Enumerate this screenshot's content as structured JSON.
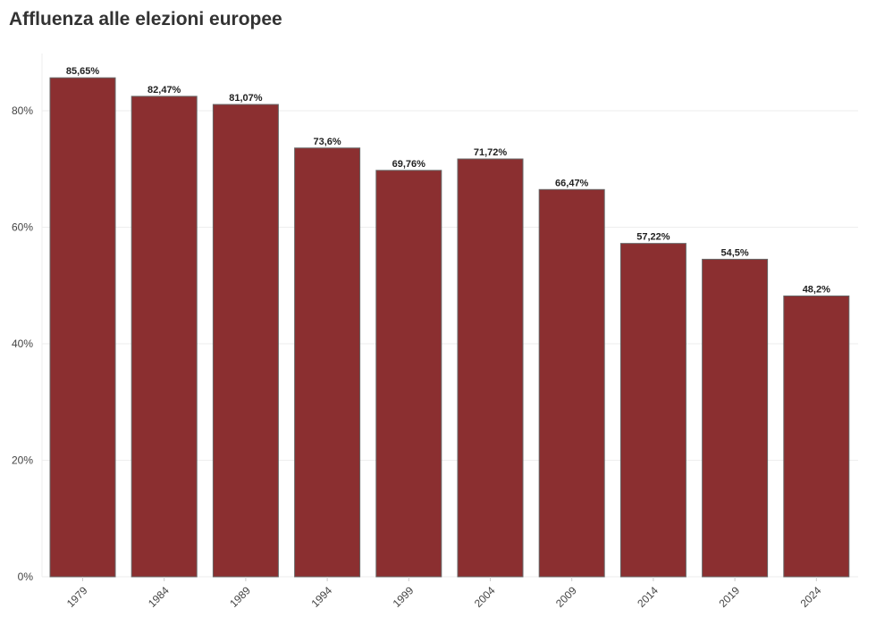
{
  "chart_data": {
    "type": "bar",
    "title": "Affluenza alle elezioni europee",
    "xlabel": "",
    "ylabel": "",
    "categories": [
      "1979",
      "1984",
      "1989",
      "1994",
      "1999",
      "2004",
      "2009",
      "2014",
      "2019",
      "2024"
    ],
    "values": [
      85.65,
      82.47,
      81.07,
      73.6,
      69.76,
      71.72,
      66.47,
      57.22,
      54.5,
      48.2
    ],
    "data_labels": [
      "85,65%",
      "82,47%",
      "81,07%",
      "73,6%",
      "69,76%",
      "71,72%",
      "66,47%",
      "57,22%",
      "54,5%",
      "48,2%"
    ],
    "ylim": [
      0,
      90
    ],
    "yticks": [
      0,
      20,
      40,
      60,
      80
    ],
    "ytick_labels": [
      "0%",
      "20%",
      "40%",
      "60%",
      "80%"
    ],
    "grid": true,
    "colors": {
      "bar": "#8b2f30",
      "bar_border": "#666666",
      "grid": "#eeeeee"
    }
  }
}
